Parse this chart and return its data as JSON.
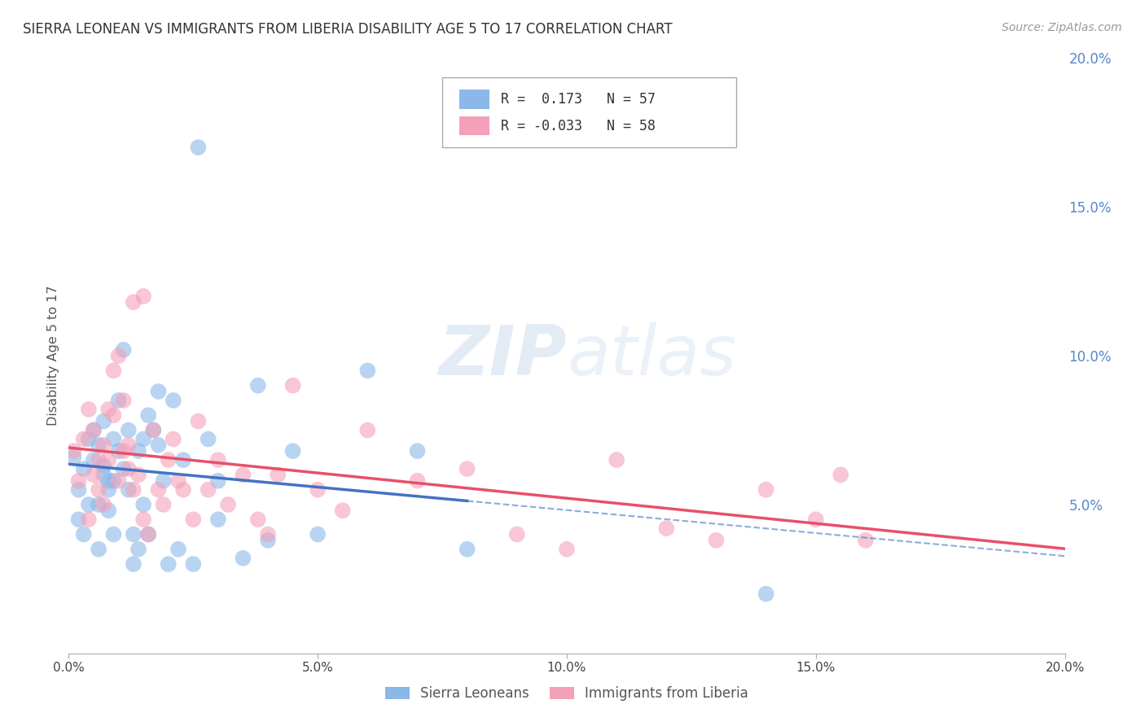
{
  "title": "SIERRA LEONEAN VS IMMIGRANTS FROM LIBERIA DISABILITY AGE 5 TO 17 CORRELATION CHART",
  "source": "Source: ZipAtlas.com",
  "ylabel": "Disability Age 5 to 17",
  "xmin": 0.0,
  "xmax": 0.2,
  "ymin": 0.0,
  "ymax": 0.2,
  "xticks": [
    0.0,
    0.05,
    0.1,
    0.15,
    0.2
  ],
  "xtick_labels": [
    "0.0%",
    "5.0%",
    "10.0%",
    "15.0%",
    "20.0%"
  ],
  "right_yticks": [
    0.05,
    0.1,
    0.15,
    0.2
  ],
  "right_ytick_labels": [
    "5.0%",
    "10.0%",
    "15.0%",
    "20.0%"
  ],
  "sierra_color": "#8BB8E8",
  "liberia_color": "#F4A0B8",
  "sierra_line_color": "#4472C4",
  "liberia_line_color": "#E8506A",
  "sierra_label": "Sierra Leoneans",
  "liberia_label": "Immigrants from Liberia",
  "sierra_R": 0.173,
  "sierra_N": 57,
  "liberia_R": -0.033,
  "liberia_N": 58,
  "bg_color": "#FFFFFF",
  "grid_color": "#CCCCCC",
  "title_color": "#333333",
  "axis_label_color": "#555555",
  "right_axis_color": "#5588CC",
  "sierra_x": [
    0.001,
    0.002,
    0.002,
    0.003,
    0.003,
    0.004,
    0.004,
    0.005,
    0.005,
    0.006,
    0.006,
    0.006,
    0.007,
    0.007,
    0.007,
    0.008,
    0.008,
    0.008,
    0.009,
    0.009,
    0.009,
    0.01,
    0.01,
    0.011,
    0.011,
    0.012,
    0.012,
    0.013,
    0.013,
    0.014,
    0.014,
    0.015,
    0.015,
    0.016,
    0.016,
    0.017,
    0.018,
    0.018,
    0.019,
    0.02,
    0.021,
    0.022,
    0.023,
    0.025,
    0.026,
    0.028,
    0.03,
    0.03,
    0.035,
    0.038,
    0.04,
    0.045,
    0.05,
    0.06,
    0.07,
    0.08,
    0.14
  ],
  "sierra_y": [
    0.066,
    0.055,
    0.045,
    0.062,
    0.04,
    0.05,
    0.072,
    0.065,
    0.075,
    0.05,
    0.035,
    0.07,
    0.078,
    0.06,
    0.063,
    0.058,
    0.055,
    0.048,
    0.04,
    0.058,
    0.072,
    0.068,
    0.085,
    0.062,
    0.102,
    0.075,
    0.055,
    0.03,
    0.04,
    0.035,
    0.068,
    0.072,
    0.05,
    0.04,
    0.08,
    0.075,
    0.088,
    0.07,
    0.058,
    0.03,
    0.085,
    0.035,
    0.065,
    0.03,
    0.17,
    0.072,
    0.058,
    0.045,
    0.032,
    0.09,
    0.038,
    0.068,
    0.04,
    0.095,
    0.068,
    0.035,
    0.02
  ],
  "liberia_x": [
    0.001,
    0.002,
    0.003,
    0.004,
    0.004,
    0.005,
    0.005,
    0.006,
    0.006,
    0.007,
    0.007,
    0.008,
    0.008,
    0.009,
    0.009,
    0.01,
    0.01,
    0.011,
    0.011,
    0.012,
    0.012,
    0.013,
    0.013,
    0.014,
    0.015,
    0.015,
    0.016,
    0.017,
    0.018,
    0.019,
    0.02,
    0.021,
    0.022,
    0.023,
    0.025,
    0.026,
    0.028,
    0.03,
    0.032,
    0.035,
    0.038,
    0.04,
    0.042,
    0.045,
    0.05,
    0.055,
    0.06,
    0.07,
    0.08,
    0.09,
    0.1,
    0.11,
    0.12,
    0.13,
    0.14,
    0.15,
    0.16,
    0.155
  ],
  "liberia_y": [
    0.068,
    0.058,
    0.072,
    0.045,
    0.082,
    0.06,
    0.075,
    0.065,
    0.055,
    0.07,
    0.05,
    0.065,
    0.082,
    0.08,
    0.095,
    0.058,
    0.1,
    0.085,
    0.068,
    0.07,
    0.062,
    0.055,
    0.118,
    0.06,
    0.045,
    0.12,
    0.04,
    0.075,
    0.055,
    0.05,
    0.065,
    0.072,
    0.058,
    0.055,
    0.045,
    0.078,
    0.055,
    0.065,
    0.05,
    0.06,
    0.045,
    0.04,
    0.06,
    0.09,
    0.055,
    0.048,
    0.075,
    0.058,
    0.062,
    0.04,
    0.035,
    0.065,
    0.042,
    0.038,
    0.055,
    0.045,
    0.038,
    0.06
  ]
}
